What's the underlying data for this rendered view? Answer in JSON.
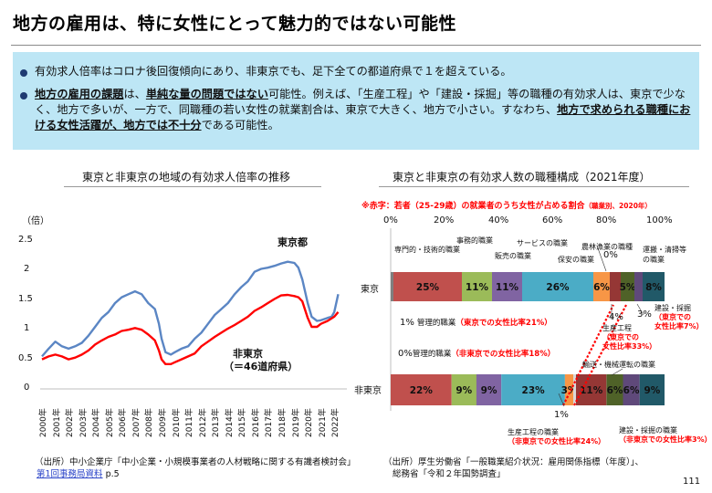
{
  "title": "地方の雇用は、特に女性にとって魅力的ではない可能性",
  "summary": {
    "b1": "有効求人倍率はコロナ後回復傾向にあり、非東京でも、足下全ての都道府県で１を超えている。",
    "b2": {
      "u1": "地方の雇用の課題",
      "t1": "は、",
      "u2": "単純な量の問題ではない",
      "t2": "可能性。例えば、「生産工程」や「建設・採掘」等の職種の有効求人は、東京で少なく、地方で多いが、一方で、同職種の若い女性の就業割合は、東京で大きく、地方で小さい。すなわち、",
      "u3": "地方で求められる職種における女性活躍が、地方では不十分",
      "t3": "である可能性。"
    }
  },
  "left_chart": {
    "title": "東京と非東京の地域の有効求人倍率の推移",
    "unit": "（倍）",
    "y_ticks": [
      "2.5",
      "2",
      "1.5",
      "1",
      "0.5",
      "0"
    ],
    "label_tokyo": "東京都",
    "label_non1": "非東京",
    "label_non2": "（＝46道府県）",
    "source1": "（出所）中小企業庁「中小企業・小規模事業者の人材戦略に関する有識者検討会」",
    "source_link": "第1回事務局資料",
    "source_page": " p.5"
  },
  "right_chart": {
    "title": "東京と非東京の有効求人数の職種構成（2021年度）",
    "note": "※赤字：若者（25-29歳）の就業者のうち女性が占める割合",
    "note_small": "（職業別、2020年）",
    "x_ticks": [
      "0%",
      "20%",
      "40%",
      "60%",
      "80%",
      "100%"
    ],
    "row_tokyo": "東京",
    "row_non": "非東京",
    "top_labels": {
      "senmon": "専門的・技術的職業",
      "jimu": "事務的職業",
      "hanbai": "販売の職業",
      "service": "サービスの職業",
      "hoan": "保安の職業",
      "noorin": "農林漁業の職種",
      "noorin_v": "0%",
      "unpan": "運搬・清掃等の職業"
    },
    "mid_labels": {
      "hoan_pct": "1%",
      "kanri1": "管理的職業",
      "kanri1_red": "（東京での女性比率21%）",
      "zero": "0%",
      "kanri2": "管理的職業",
      "kanri2_red": "（非東京での女性比率18%）",
      "seisan_pct": "4%",
      "seisan": "生産工程",
      "seisan_red1": "（東京での",
      "seisan_red2": "女性比率33%）",
      "kensetsu_pct": "3%",
      "kensetsu": "建設・採掘",
      "kensetsu_red1": "（東京での",
      "kensetsu_red2": "女性比率7%）",
      "yuso": "輸送・機械運転の職業"
    },
    "bottom_labels": {
      "one": "1%",
      "seisan": "生産工程の職業",
      "seisan_red": "（非東京での女性比率24%）",
      "kensetsu": "建設・採掘の職業",
      "kensetsu_red": "（非東京での女性比率3%）"
    },
    "source1": "（出所）厚生労働省「一般職業紹介状況：雇用関係指標（年度）」、",
    "source2": "総務省「令和２年国勢調査」"
  },
  "page_number": "111",
  "chart_data": [
    {
      "type": "line",
      "title": "東京と非東京の地域の有効求人倍率の推移",
      "ylabel": "（倍）",
      "ylim": [
        0,
        2.5
      ],
      "x": [
        2000,
        2001,
        2002,
        2003,
        2004,
        2005,
        2006,
        2007,
        2008,
        2009,
        2010,
        2011,
        2012,
        2013,
        2014,
        2015,
        2016,
        2017,
        2018,
        2019,
        2020,
        2021,
        2022
      ],
      "x_tick_labels": [
        "2000年",
        "2001年",
        "2002年",
        "2003年",
        "2004年",
        "2005年",
        "2006年",
        "2007年",
        "2008年",
        "2009年",
        "2010年",
        "2011年",
        "2012年",
        "2013年",
        "2014年",
        "2015年",
        "2016年",
        "2017年",
        "2018年",
        "2019年",
        "2020年",
        "2021年",
        "2022年"
      ],
      "series": [
        {
          "name": "東京都",
          "color": "#5b86c4",
          "points": [
            [
              2000.0,
              0.55
            ],
            [
              2000.5,
              0.68
            ],
            [
              2001.0,
              0.8
            ],
            [
              2001.5,
              0.72
            ],
            [
              2002.0,
              0.68
            ],
            [
              2002.5,
              0.72
            ],
            [
              2003.0,
              0.78
            ],
            [
              2003.5,
              0.9
            ],
            [
              2004.0,
              1.05
            ],
            [
              2004.5,
              1.2
            ],
            [
              2005.0,
              1.3
            ],
            [
              2005.5,
              1.45
            ],
            [
              2006.0,
              1.55
            ],
            [
              2006.5,
              1.6
            ],
            [
              2007.0,
              1.65
            ],
            [
              2007.5,
              1.6
            ],
            [
              2008.0,
              1.45
            ],
            [
              2008.5,
              1.35
            ],
            [
              2008.8,
              1.1
            ],
            [
              2009.0,
              0.85
            ],
            [
              2009.3,
              0.62
            ],
            [
              2009.7,
              0.58
            ],
            [
              2010.0,
              0.62
            ],
            [
              2010.5,
              0.68
            ],
            [
              2011.0,
              0.72
            ],
            [
              2011.5,
              0.85
            ],
            [
              2012.0,
              0.95
            ],
            [
              2012.5,
              1.1
            ],
            [
              2013.0,
              1.25
            ],
            [
              2013.5,
              1.35
            ],
            [
              2014.0,
              1.45
            ],
            [
              2014.5,
              1.6
            ],
            [
              2015.0,
              1.72
            ],
            [
              2015.5,
              1.82
            ],
            [
              2016.0,
              1.98
            ],
            [
              2016.5,
              2.03
            ],
            [
              2017.0,
              2.05
            ],
            [
              2017.5,
              2.08
            ],
            [
              2018.0,
              2.12
            ],
            [
              2018.5,
              2.15
            ],
            [
              2019.0,
              2.13
            ],
            [
              2019.3,
              2.05
            ],
            [
              2019.6,
              1.85
            ],
            [
              2020.0,
              1.45
            ],
            [
              2020.3,
              1.22
            ],
            [
              2020.7,
              1.15
            ],
            [
              2021.0,
              1.16
            ],
            [
              2021.5,
              1.2
            ],
            [
              2021.8,
              1.22
            ],
            [
              2022.0,
              1.3
            ],
            [
              2022.3,
              1.6
            ]
          ]
        },
        {
          "name": "非東京",
          "color": "#ff0000",
          "points": [
            [
              2000.0,
              0.5
            ],
            [
              2000.5,
              0.55
            ],
            [
              2001.0,
              0.58
            ],
            [
              2001.5,
              0.55
            ],
            [
              2002.0,
              0.5
            ],
            [
              2002.5,
              0.53
            ],
            [
              2003.0,
              0.58
            ],
            [
              2003.5,
              0.65
            ],
            [
              2004.0,
              0.75
            ],
            [
              2004.5,
              0.82
            ],
            [
              2005.0,
              0.88
            ],
            [
              2005.5,
              0.92
            ],
            [
              2006.0,
              0.98
            ],
            [
              2006.5,
              1.0
            ],
            [
              2007.0,
              1.03
            ],
            [
              2007.5,
              1.0
            ],
            [
              2008.0,
              0.92
            ],
            [
              2008.5,
              0.82
            ],
            [
              2008.8,
              0.65
            ],
            [
              2009.0,
              0.5
            ],
            [
              2009.3,
              0.42
            ],
            [
              2009.7,
              0.42
            ],
            [
              2010.0,
              0.45
            ],
            [
              2010.5,
              0.5
            ],
            [
              2011.0,
              0.55
            ],
            [
              2011.5,
              0.6
            ],
            [
              2012.0,
              0.72
            ],
            [
              2012.5,
              0.8
            ],
            [
              2013.0,
              0.88
            ],
            [
              2013.5,
              0.95
            ],
            [
              2014.0,
              1.02
            ],
            [
              2014.5,
              1.08
            ],
            [
              2015.0,
              1.15
            ],
            [
              2015.5,
              1.22
            ],
            [
              2016.0,
              1.32
            ],
            [
              2016.5,
              1.38
            ],
            [
              2017.0,
              1.45
            ],
            [
              2017.5,
              1.52
            ],
            [
              2018.0,
              1.58
            ],
            [
              2018.5,
              1.59
            ],
            [
              2019.0,
              1.57
            ],
            [
              2019.3,
              1.55
            ],
            [
              2019.6,
              1.48
            ],
            [
              2020.0,
              1.2
            ],
            [
              2020.3,
              1.05
            ],
            [
              2020.7,
              1.05
            ],
            [
              2021.0,
              1.1
            ],
            [
              2021.5,
              1.15
            ],
            [
              2022.0,
              1.22
            ],
            [
              2022.3,
              1.3
            ]
          ]
        }
      ]
    },
    {
      "type": "bar",
      "title": "東京と非東京の有効求人数の職種構成（2021年度）",
      "stacked": true,
      "orientation": "horizontal",
      "categories": [
        "東京",
        "非東京"
      ],
      "xlim": [
        0,
        100
      ],
      "series": [
        {
          "name": "管理的職業",
          "color": "#7f7f7f",
          "values": [
            1,
            0
          ]
        },
        {
          "name": "専門的・技術的職業",
          "color": "#c0504d",
          "values": [
            25,
            22
          ]
        },
        {
          "name": "事務的職業",
          "color": "#9bbb59",
          "values": [
            11,
            9
          ]
        },
        {
          "name": "販売の職業",
          "color": "#8064a2",
          "values": [
            11,
            9
          ]
        },
        {
          "name": "サービスの職業",
          "color": "#4bacc6",
          "values": [
            26,
            23
          ]
        },
        {
          "name": "保安の職業",
          "color": "#f79646",
          "values": [
            6,
            3
          ]
        },
        {
          "name": "農林漁業の職種",
          "color": "#d9d9d9",
          "values": [
            0,
            1
          ]
        },
        {
          "name": "生産工程",
          "color": "#953735",
          "values": [
            4,
            11
          ]
        },
        {
          "name": "輸送・機械運転の職業",
          "color": "#4f6228",
          "values": [
            5,
            6
          ]
        },
        {
          "name": "建設・採掘",
          "color": "#5f497a",
          "values": [
            3,
            6
          ]
        },
        {
          "name": "運搬・清掃等の職業",
          "color": "#215968",
          "values": [
            8,
            9
          ]
        }
      ],
      "data_labels": [
        [
          "",
          "25%",
          "11%",
          "11%",
          "26%",
          "6%",
          "",
          "",
          "5%",
          "",
          "8%"
        ],
        [
          "",
          "22%",
          "9%",
          "9%",
          "23%",
          "3%",
          "",
          "11%",
          "6%",
          "6%",
          "9%"
        ]
      ]
    }
  ]
}
